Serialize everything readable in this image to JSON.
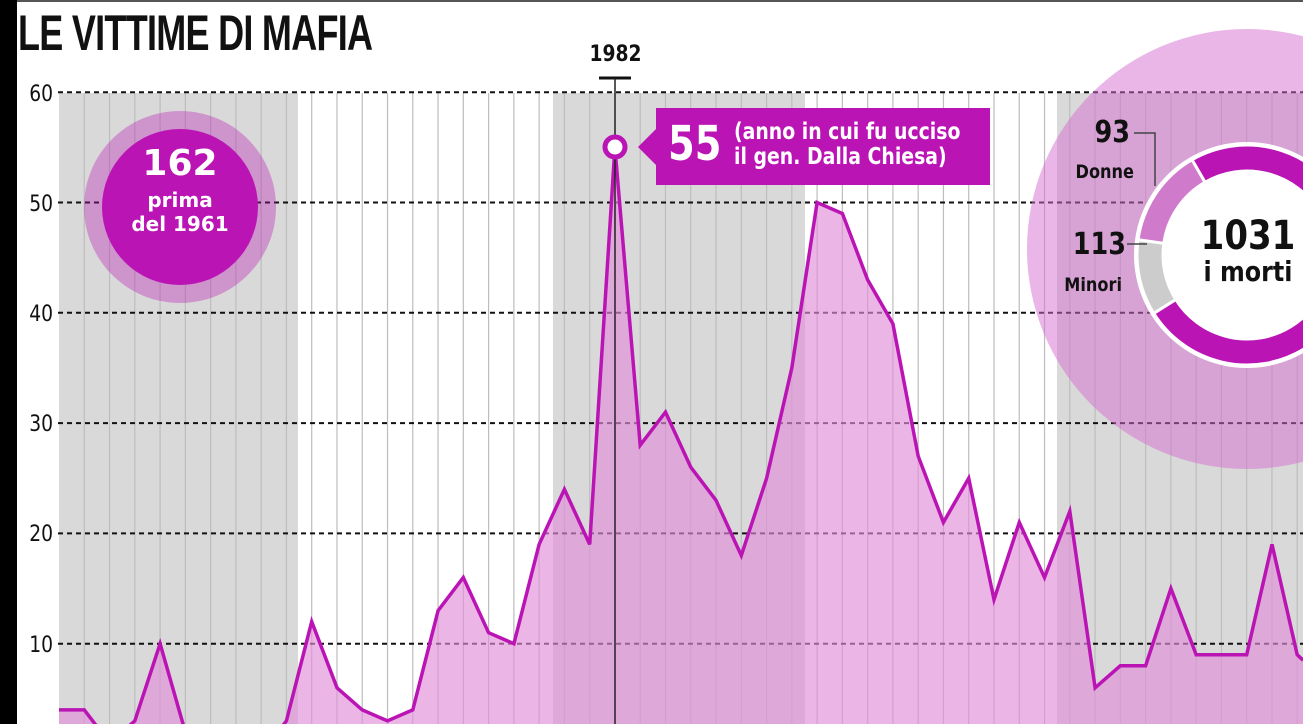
{
  "title": "LE VITTIME DI MAFIA",
  "y_axis": {
    "ticks": [
      "60",
      "50",
      "40",
      "30",
      "20",
      "10"
    ]
  },
  "highlight": {
    "year": "1982",
    "value": "55",
    "note_line1": "(anno in cui fu ucciso",
    "note_line2": "il gen. Dalla Chiesa)"
  },
  "before_badge": {
    "value": "162",
    "line1": "prima",
    "line2": "del 1961"
  },
  "donut": {
    "total": "1031",
    "total_label": "i morti",
    "women_value": "93",
    "women_label": "Donne",
    "minors_value": "113",
    "minors_label": "Minori"
  },
  "colors": {
    "line": "#bb14b5",
    "fill_light": "#ecb3e6",
    "fill_on_gray": "#d4a3cf",
    "band_gray": "#d9d9d9",
    "grid_line": "#bdbdbd",
    "donut_gray": "#cccccc"
  },
  "chart_data": {
    "type": "area",
    "title": "LE VITTIME DI MAFIA",
    "xlabel": "",
    "ylabel": "",
    "ylim": [
      0,
      60
    ],
    "yticks": [
      10,
      20,
      30,
      40,
      50,
      60
    ],
    "grid": "horizontal dashed at every 10; vertical lines every year",
    "x_labels_shown": [
      "1982"
    ],
    "x": [
      1960,
      1961,
      1962,
      1963,
      1964,
      1965,
      1966,
      1967,
      1968,
      1969,
      1970,
      1971,
      1972,
      1973,
      1974,
      1975,
      1976,
      1977,
      1978,
      1979,
      1980,
      1981,
      1982,
      1983,
      1984,
      1985,
      1986,
      1987,
      1988,
      1989,
      1990,
      1991,
      1992,
      1993,
      1994,
      1995,
      1996,
      1997,
      1998,
      1999,
      2000,
      2001,
      2002,
      2003,
      2004,
      2005,
      2006,
      2007,
      2008,
      2009
    ],
    "values": [
      4,
      4,
      1,
      3,
      10,
      2,
      0,
      0,
      0,
      3,
      12,
      6,
      4,
      3,
      4,
      13,
      16,
      11,
      10,
      19,
      24,
      19,
      55,
      28,
      31,
      26,
      23,
      18,
      25,
      35,
      50,
      49,
      43,
      39,
      27,
      21,
      25,
      14,
      21,
      16,
      22,
      6,
      8,
      8,
      15,
      9,
      9,
      9,
      19,
      9
    ],
    "annotations": [
      {
        "x": 1982,
        "y": 55,
        "text": "55 (anno in cui fu ucciso il gen. Dalla Chiesa)"
      },
      {
        "text": "162 prima del 1961"
      },
      {
        "text": "1031 i morti",
        "breakdown": {
          "Donne": 93,
          "Minori": 113
        }
      }
    ]
  }
}
